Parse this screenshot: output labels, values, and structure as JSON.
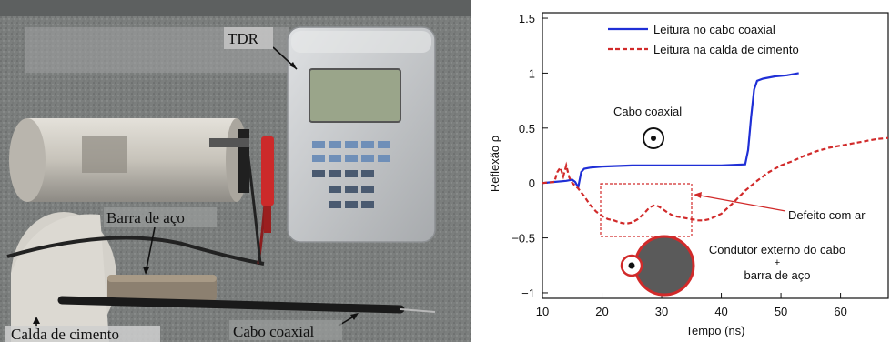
{
  "photo": {
    "labels": {
      "tdr": "TDR",
      "barra": "Barra de aço",
      "calda": "Calda de cimento",
      "cabo": "Cabo coaxial"
    },
    "colors": {
      "floor": "#7a7d7c",
      "device": "#c8cacc",
      "screen": "#9aa58a",
      "keys_blue": "#6f8fb8",
      "probe_red": "#cc2a2a",
      "cylinder": "#c9c5bc"
    }
  },
  "chart_data": {
    "type": "line",
    "xlabel": "Tempo (ns)",
    "ylabel": "Reflexão  ρ",
    "xlim": [
      10,
      68
    ],
    "ylim": [
      -1.05,
      1.55
    ],
    "xticks": [
      10,
      20,
      30,
      40,
      50,
      60
    ],
    "yticks": [
      -1,
      -0.5,
      0,
      0.5,
      1,
      1.5
    ],
    "ytick_labels": [
      "−1",
      "−0.5",
      "0",
      "0.5",
      "1",
      "1.5"
    ],
    "legend_position": "top",
    "grid": false,
    "series": [
      {
        "name": "Leitura no cabo coaxial",
        "color": "#1f2fd6",
        "style": "solid",
        "x": [
          10,
          12,
          14,
          15,
          15.5,
          16,
          16.5,
          17,
          18,
          20,
          25,
          30,
          35,
          40,
          44,
          44.5,
          45,
          45.5,
          46,
          47,
          49,
          51,
          53
        ],
        "y": [
          0.0,
          0.01,
          0.02,
          0.03,
          0.01,
          -0.04,
          0.1,
          0.13,
          0.14,
          0.15,
          0.16,
          0.16,
          0.16,
          0.16,
          0.17,
          0.3,
          0.6,
          0.85,
          0.93,
          0.95,
          0.97,
          0.98,
          1.0
        ]
      },
      {
        "name": "Leitura na calda de cimento",
        "color": "#d12a2a",
        "style": "dashed",
        "x": [
          10,
          12,
          12.5,
          13,
          13.5,
          14,
          14.5,
          15,
          16,
          17,
          18,
          19,
          20,
          21,
          22,
          23,
          24,
          25,
          26,
          27,
          28,
          29,
          30,
          31,
          32,
          33,
          34,
          35,
          36,
          37,
          38,
          40,
          42,
          44,
          46,
          48,
          50,
          52,
          54,
          56,
          58,
          60,
          62,
          64,
          66,
          68
        ],
        "y": [
          0.0,
          0.01,
          0.1,
          0.14,
          0.06,
          0.16,
          0.05,
          0.0,
          -0.05,
          -0.12,
          -0.2,
          -0.26,
          -0.3,
          -0.33,
          -0.34,
          -0.36,
          -0.37,
          -0.36,
          -0.33,
          -0.28,
          -0.22,
          -0.2,
          -0.23,
          -0.27,
          -0.3,
          -0.31,
          -0.32,
          -0.33,
          -0.34,
          -0.34,
          -0.33,
          -0.28,
          -0.18,
          -0.07,
          0.02,
          0.1,
          0.16,
          0.2,
          0.25,
          0.29,
          0.32,
          0.34,
          0.36,
          0.38,
          0.4,
          0.41
        ]
      }
    ],
    "annotations": {
      "cabo_coaxial": "Cabo coaxial",
      "defeito": "Defeito com ar",
      "condutor_1": "Condutor externo do cabo",
      "condutor_plus": "+",
      "condutor_2": "barra de aço"
    }
  }
}
